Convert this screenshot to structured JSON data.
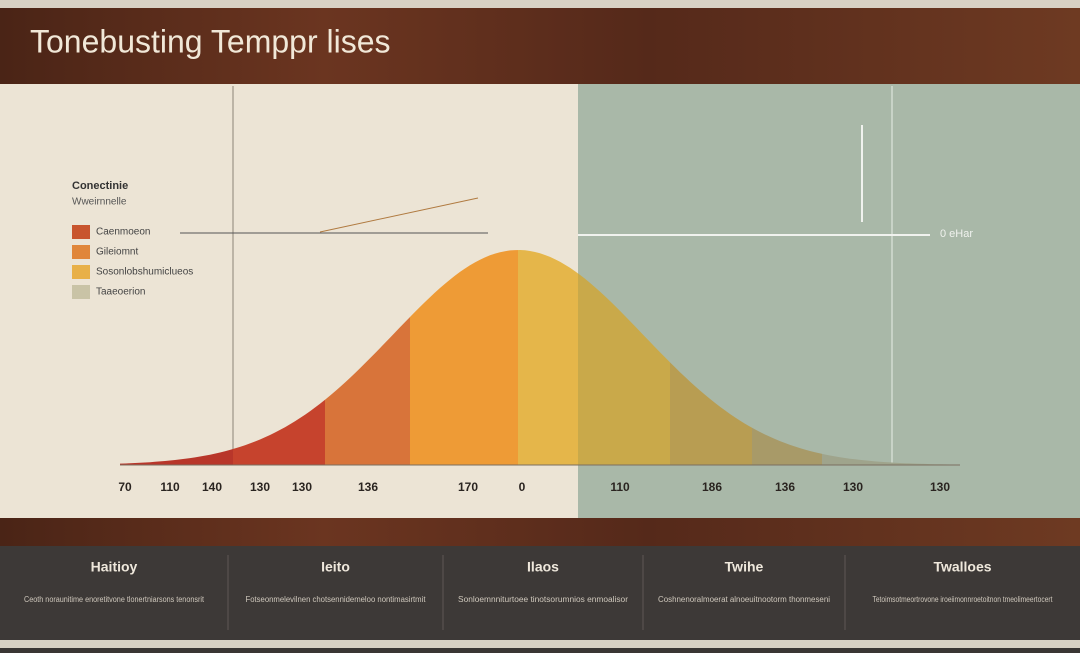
{
  "header": {
    "title": "Tonebusting Temppr lises"
  },
  "legend": {
    "title": "Conectinie",
    "subtitle": "Wweirnnelle",
    "items": [
      "Caenmoeon",
      "Gileiomnt",
      "Sosonlobshumiclueos",
      "Taaeoerion"
    ]
  },
  "chart": {
    "x_labels": [
      "70",
      "110",
      "140",
      "130",
      "130",
      "136",
      "170",
      "0",
      "110",
      "186",
      "136",
      "130",
      "130"
    ],
    "annotation": "0 eHar"
  },
  "panels": [
    {
      "title": "Haitioy",
      "text": "Ceoth noraunitime enoretitvone tlonertniarsons tenonsrit"
    },
    {
      "title": "Ieito",
      "text": "Fotseonmelevilnen chotsennidemeloo nontimasirtmit"
    },
    {
      "title": "Ilaos",
      "text": "Sonloemnniturtoee tinotsorumnios enmoalisor"
    },
    {
      "title": "Twihe",
      "text": "Coshnenoralmoerat alnoeuitnootorm thonmeseni"
    },
    {
      "title": "Twalloes",
      "text": "Tetoimsotmeortrovone iroeiimonnroetoitnon tmeolimeertocert"
    }
  ]
}
